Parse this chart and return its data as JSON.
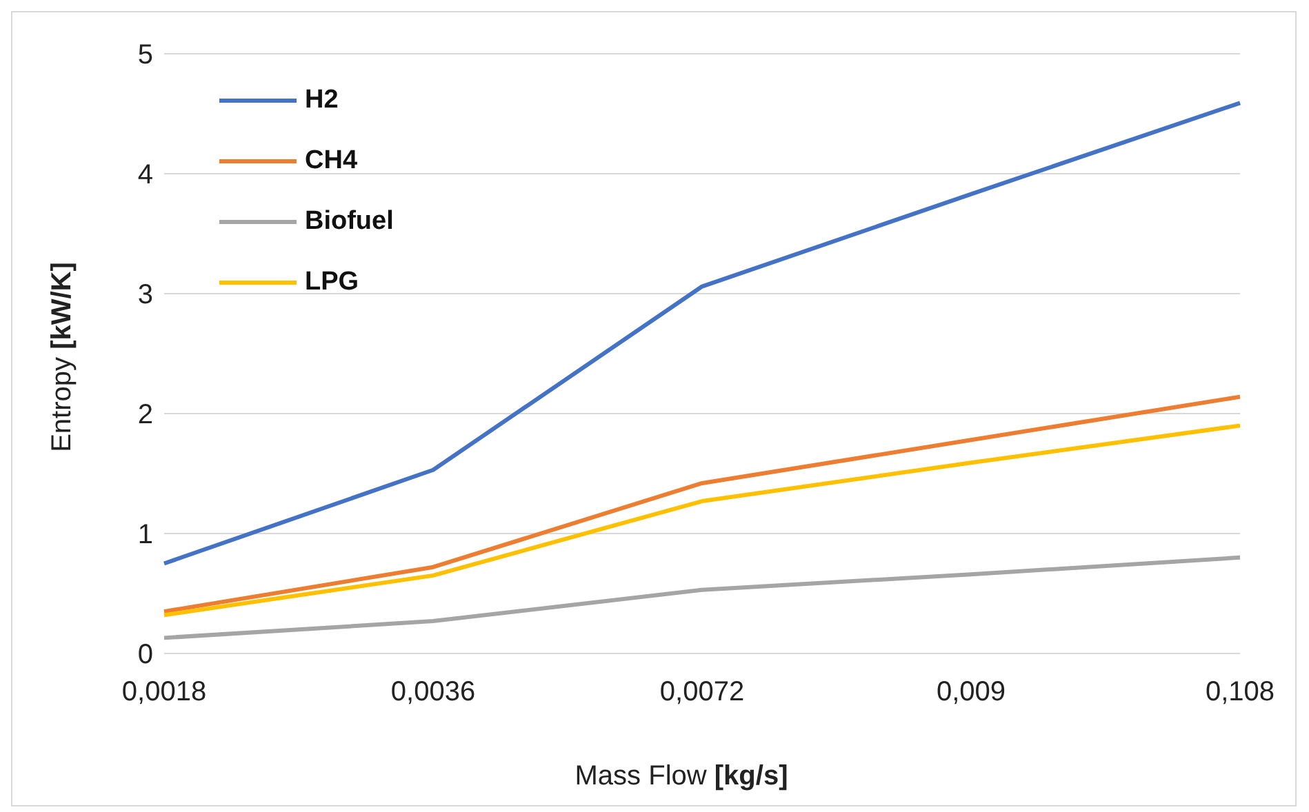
{
  "chart_data": {
    "type": "line",
    "xlabel": "Mass Flow [kg/s]",
    "ylabel": "Entropy  [kW/K]",
    "categories": [
      "0,0018",
      "0,0036",
      "0,0072",
      "0,009",
      "0,108"
    ],
    "series": [
      {
        "name": "H2",
        "color": "#4472c4",
        "values": [
          0.75,
          1.53,
          3.06,
          3.83,
          4.59
        ]
      },
      {
        "name": "CH4",
        "color": "#ed7d31",
        "values": [
          0.35,
          0.72,
          1.42,
          1.78,
          2.14
        ]
      },
      {
        "name": "Biofuel",
        "color": "#a5a5a5",
        "values": [
          0.13,
          0.27,
          0.53,
          0.66,
          0.8
        ]
      },
      {
        "name": "LPG",
        "color": "#ffc000",
        "values": [
          0.32,
          0.65,
          1.27,
          1.59,
          1.9
        ]
      }
    ],
    "ylim": [
      0,
      5
    ],
    "yticks": [
      0,
      1,
      2,
      3,
      4,
      5
    ],
    "grid": "y",
    "legend": "top left",
    "marker": "none",
    "line_style": "solid"
  }
}
